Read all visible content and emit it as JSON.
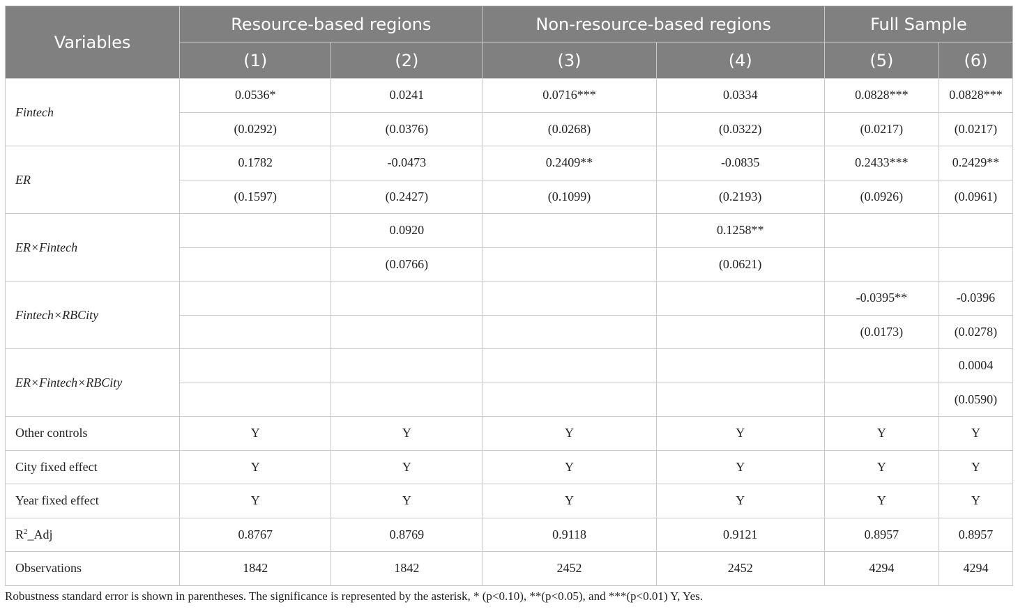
{
  "header": {
    "variables": "Variables",
    "groups": [
      "Resource-based regions",
      "Non-resource-based regions",
      "Full Sample"
    ],
    "columns": [
      "(1)",
      "(2)",
      "(3)",
      "(4)",
      "(5)",
      "(6)"
    ]
  },
  "coef_rows": [
    {
      "label": "Fintech",
      "coef": [
        "0.0536*",
        "0.0241",
        "0.0716***",
        "0.0334",
        "0.0828***",
        "0.0828***"
      ],
      "se": [
        "(0.0292)",
        "(0.0376)",
        "(0.0268)",
        "(0.0322)",
        "(0.0217)",
        "(0.0217)"
      ]
    },
    {
      "label": "ER",
      "coef": [
        "0.1782",
        "-0.0473",
        "0.2409**",
        "-0.0835",
        "0.2433***",
        "0.2429**"
      ],
      "se": [
        "(0.1597)",
        "(0.2427)",
        "(0.1099)",
        "(0.2193)",
        "(0.0926)",
        "(0.0961)"
      ]
    },
    {
      "label": "ER×Fintech",
      "coef": [
        "",
        "0.0920",
        "",
        "0.1258**",
        "",
        ""
      ],
      "se": [
        "",
        "(0.0766)",
        "",
        "(0.0621)",
        "",
        ""
      ]
    },
    {
      "label": "Fintech×RBCity",
      "coef": [
        "",
        "",
        "",
        "",
        "-0.0395**",
        "-0.0396"
      ],
      "se": [
        "",
        "",
        "",
        "",
        "(0.0173)",
        "(0.0278)"
      ]
    },
    {
      "label": "ER×Fintech×RBCity",
      "coef": [
        "",
        "",
        "",
        "",
        "",
        "0.0004"
      ],
      "se": [
        "",
        "",
        "",
        "",
        "",
        "(0.0590)"
      ]
    }
  ],
  "stat_rows": [
    {
      "label": "Other controls",
      "values": [
        "Y",
        "Y",
        "Y",
        "Y",
        "Y",
        "Y"
      ]
    },
    {
      "label": "City fixed effect",
      "values": [
        "Y",
        "Y",
        "Y",
        "Y",
        "Y",
        "Y"
      ]
    },
    {
      "label": "Year fixed effect",
      "values": [
        "Y",
        "Y",
        "Y",
        "Y",
        "Y",
        "Y"
      ]
    },
    {
      "label": "R",
      "label_sup": "2",
      "label_suffix": "_Adj",
      "values": [
        "0.8767",
        "0.8769",
        "0.9118",
        "0.9121",
        "0.8957",
        "0.8957"
      ]
    },
    {
      "label": "Observations",
      "values": [
        "1842",
        "1842",
        "2452",
        "2452",
        "4294",
        "4294"
      ]
    }
  ],
  "note": "Robustness standard error is shown in parentheses. The significance is represented by the asterisk, * (p<0.10), **(p<0.05), and ***(p<0.01) Y, Yes."
}
